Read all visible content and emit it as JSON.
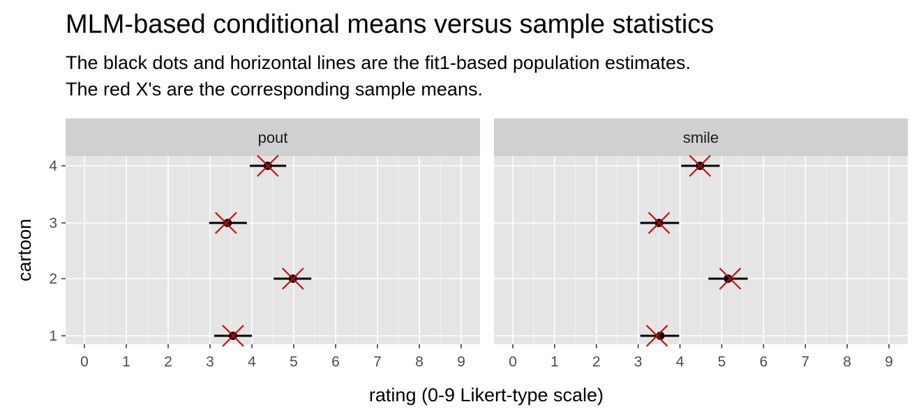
{
  "title": "MLM-based conditional means versus sample statistics",
  "subtitle_lines": [
    "The black dots and horizontal lines are the fit1-based population estimates.",
    "The red X's are the corresponding sample means."
  ],
  "chart_data": {
    "type": "scatter",
    "title": "MLM-based conditional means versus sample statistics",
    "xlabel": "rating (0-9 Likert-type scale)",
    "ylabel": "cartoon",
    "xlim": [
      -0.45,
      9.45
    ],
    "x_ticks": [
      "0",
      "1",
      "2",
      "3",
      "4",
      "5",
      "6",
      "7",
      "8",
      "9"
    ],
    "y_categories": [
      "1",
      "2",
      "3",
      "4"
    ],
    "grid": true,
    "colors": {
      "panel_bg": "#e5e5e5",
      "strip_bg": "#d0d0d0",
      "grid": "#ffffff",
      "estimate": "#000000",
      "sample_mean": "#cc0000"
    },
    "facets": [
      {
        "name": "pout",
        "estimates": [
          {
            "cartoon": "1",
            "estimate": 3.55,
            "lower": 3.1,
            "upper": 4.0,
            "sample_mean": 3.55
          },
          {
            "cartoon": "2",
            "estimate": 4.98,
            "lower": 4.52,
            "upper": 5.42,
            "sample_mean": 4.98
          },
          {
            "cartoon": "3",
            "estimate": 3.42,
            "lower": 2.98,
            "upper": 3.88,
            "sample_mean": 3.38
          },
          {
            "cartoon": "4",
            "estimate": 4.38,
            "lower": 3.95,
            "upper": 4.82,
            "sample_mean": 4.38
          }
        ]
      },
      {
        "name": "smile",
        "estimates": [
          {
            "cartoon": "1",
            "estimate": 3.53,
            "lower": 3.05,
            "upper": 3.98,
            "sample_mean": 3.45
          },
          {
            "cartoon": "2",
            "estimate": 5.15,
            "lower": 4.68,
            "upper": 5.62,
            "sample_mean": 5.2
          },
          {
            "cartoon": "3",
            "estimate": 3.5,
            "lower": 3.05,
            "upper": 3.98,
            "sample_mean": 3.5
          },
          {
            "cartoon": "4",
            "estimate": 4.48,
            "lower": 4.03,
            "upper": 4.95,
            "sample_mean": 4.48
          }
        ]
      }
    ]
  }
}
